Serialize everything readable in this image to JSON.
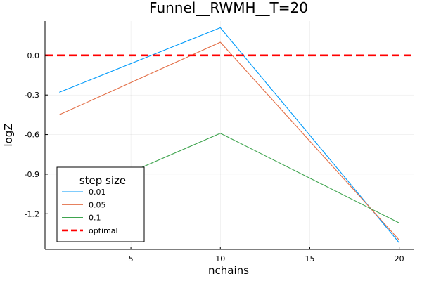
{
  "chart_data": {
    "type": "line",
    "title": "Funnel__RWMH__T=20",
    "xlabel": "nchains",
    "ylabel": "logZ",
    "xlim": [
      0.2,
      20.8
    ],
    "ylim": [
      -1.47,
      0.26
    ],
    "xticks": [
      5,
      10,
      15,
      20
    ],
    "xtick_labels": [
      "5",
      "10",
      "15",
      "20"
    ],
    "yticks": [
      0.0,
      -0.3,
      -0.6,
      -0.9,
      -1.2
    ],
    "ytick_labels": [
      "0.0",
      "-0.3",
      "-0.6",
      "-0.9",
      "-1.2"
    ],
    "grid": true,
    "legend": {
      "title": "step size",
      "placement": "bottom-left"
    },
    "series": [
      {
        "name": "0.01",
        "color": "#009AFA",
        "style": "solid",
        "x": [
          1,
          10,
          20
        ],
        "y": [
          -0.28,
          0.21,
          -1.42
        ]
      },
      {
        "name": "0.05",
        "color": "#E36F47",
        "style": "solid",
        "x": [
          1,
          10,
          20
        ],
        "y": [
          -0.45,
          0.1,
          -1.4
        ]
      },
      {
        "name": "0.1",
        "color": "#3EA44E",
        "style": "solid",
        "x": [
          1,
          10,
          20
        ],
        "y": [
          -1.12,
          -0.59,
          -1.27
        ]
      },
      {
        "name": "optimal",
        "color": "#FF0000",
        "style": "dashed",
        "x": [
          0.2,
          20.8
        ],
        "y": [
          0.0,
          0.0
        ]
      }
    ]
  }
}
